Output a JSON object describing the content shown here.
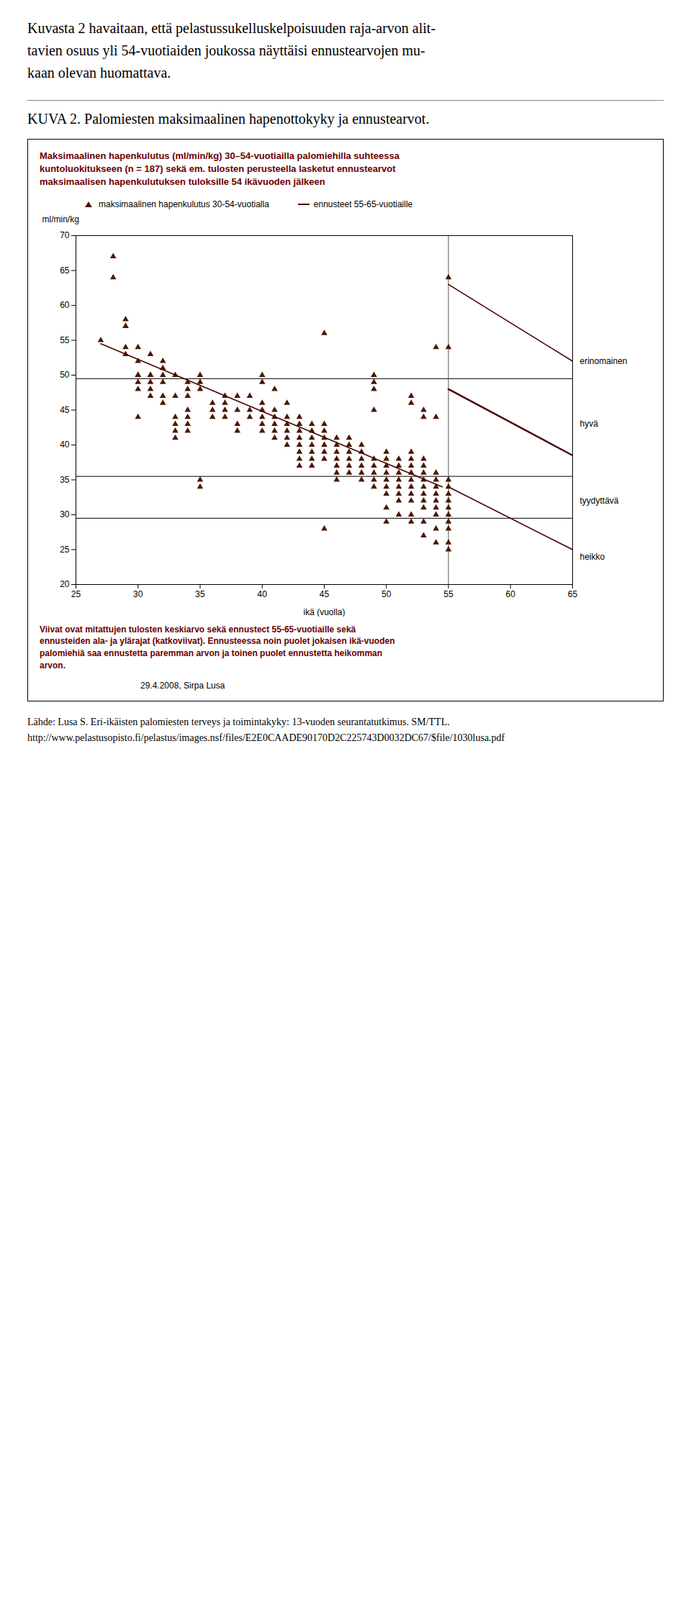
{
  "chart_data": {
    "type": "scatter",
    "intro": "Kuvasta 2  havaitaan, että pelastussukelluskelpoisuuden raja-arvon alit-\ntavien osuus yli 54-vuotiaiden joukossa näyttäisi ennustearvojen mu-\nkaan olevan huomattava.",
    "heading": "KUVA 2.  Palomiesten maksimaalinen hapenottokyky ja ennustearvot.",
    "title": "Maksimaalinen hapenkulutus (ml/min/kg) 30–54-vuotiailla palomiehilla suhteessa\nkuntoluokitukseen (n = 187) sekä em. tulosten perusteella lasketut ennustearvot\nmaksimaalisen hapenkulutuksen tuloksille 54 ikävuoden jälkeen",
    "footnote": "Viivat ovat mitattujen tulosten keskiarvo sekä ennustect 55-65-vuotiaille sekä\nennusteiden ala- ja ylärajat (katkoviivat). Ennusteessa noin puolet jokaisen ikä-vuoden\npalomiehiä saa ennustetta paremman arvon ja toinen puolet ennustetta heikomman\narvon.",
    "date": "29.4.2008,  Sirpa Lusa",
    "source": [
      "Lähde: Lusa S. Eri-ikäisten palomiesten terveys ja toimintakyky: 13-vuoden seurantatutkimus. SM/TTL.",
      "http://www.pelastusopisto.fi/pelastus/images.nsf/files/E2E0CAADE90170D2C225743D0032DC67/$file/1030lusa.pdf"
    ],
    "xlabel": "ikä (vuolla)",
    "ylabel": "ml/min/kg",
    "xlim": [
      25,
      65
    ],
    "ylim": [
      20,
      70
    ],
    "xticks": [
      25,
      30,
      35,
      40,
      45,
      50,
      55,
      60,
      65
    ],
    "yticks": [
      20,
      25,
      30,
      35,
      40,
      45,
      50,
      55,
      60,
      65,
      70
    ],
    "grid": false,
    "hlines": [
      49.5,
      35.5,
      29.5
    ],
    "vline": 55,
    "annotations": [
      {
        "text": "erinomainen",
        "y": 52
      },
      {
        "text": "hyvä",
        "y": 43
      },
      {
        "text": "tyydyttävä",
        "y": 32
      },
      {
        "text": "heikko",
        "y": 24
      }
    ],
    "series": [
      {
        "name": "maksimaalinen hapenkulutus 30-54-vuotialla",
        "type": "scatter",
        "marker": "triangle",
        "color": "#4A1800",
        "x": [
          27,
          28,
          28,
          29,
          29,
          29,
          29,
          29,
          30,
          30,
          30,
          30,
          30,
          30,
          30,
          31,
          31,
          31,
          31,
          31,
          31,
          32,
          32,
          32,
          32,
          32,
          32,
          33,
          33,
          33,
          33,
          33,
          33,
          34,
          34,
          34,
          34,
          34,
          34,
          34,
          35,
          35,
          35,
          35,
          35,
          36,
          36,
          36,
          37,
          37,
          37,
          37,
          38,
          38,
          38,
          38,
          39,
          39,
          39,
          40,
          40,
          40,
          40,
          40,
          40,
          40,
          41,
          41,
          41,
          41,
          41,
          41,
          42,
          42,
          42,
          42,
          42,
          42,
          43,
          43,
          43,
          43,
          43,
          43,
          43,
          43,
          44,
          44,
          44,
          44,
          44,
          44,
          44,
          45,
          45,
          45,
          45,
          45,
          45,
          45,
          45,
          46,
          46,
          46,
          46,
          46,
          46,
          46,
          47,
          47,
          47,
          47,
          47,
          47,
          48,
          48,
          48,
          48,
          48,
          48,
          49,
          49,
          49,
          49,
          49,
          49,
          49,
          49,
          49,
          50,
          50,
          50,
          50,
          50,
          50,
          50,
          50,
          50,
          51,
          51,
          51,
          51,
          51,
          51,
          51,
          51,
          52,
          52,
          52,
          52,
          52,
          52,
          52,
          52,
          52,
          52,
          52,
          52,
          53,
          53,
          53,
          53,
          53,
          53,
          53,
          53,
          53,
          53,
          53,
          53,
          54,
          54,
          54,
          54,
          54,
          54,
          54,
          54,
          54,
          54,
          54,
          55,
          55,
          55,
          55,
          55,
          55,
          55,
          55,
          55,
          55,
          55,
          55
        ],
        "values": [
          55,
          67,
          64,
          57,
          57,
          58,
          54,
          53,
          52,
          50,
          50,
          49,
          48,
          54,
          44,
          50,
          50,
          49,
          48,
          47,
          53,
          51,
          50,
          49,
          52,
          47,
          46,
          50,
          47,
          44,
          43,
          42,
          41,
          49,
          48,
          47,
          45,
          43,
          42,
          44,
          50,
          35,
          34,
          49,
          48,
          46,
          44,
          45,
          46,
          47,
          45,
          44,
          47,
          45,
          43,
          42,
          45,
          47,
          44,
          49,
          50,
          46,
          45,
          44,
          43,
          42,
          48,
          45,
          44,
          43,
          42,
          41,
          46,
          44,
          43,
          42,
          41,
          40,
          44,
          43,
          42,
          41,
          40,
          39,
          38,
          37,
          43,
          42,
          41,
          40,
          39,
          38,
          37,
          56,
          43,
          42,
          41,
          40,
          39,
          38,
          28,
          41,
          40,
          39,
          38,
          37,
          36,
          35,
          41,
          40,
          39,
          38,
          37,
          36,
          40,
          39,
          38,
          37,
          36,
          35,
          50,
          49,
          48,
          45,
          38,
          37,
          36,
          35,
          34,
          39,
          38,
          37,
          36,
          35,
          34,
          33,
          31,
          29,
          38,
          37,
          36,
          35,
          34,
          33,
          32,
          30,
          47,
          46,
          39,
          38,
          37,
          36,
          35,
          34,
          33,
          32,
          30,
          29,
          45,
          44,
          38,
          37,
          36,
          35,
          34,
          33,
          32,
          31,
          29,
          27,
          54,
          44,
          36,
          35,
          34,
          33,
          32,
          31,
          30,
          28,
          26,
          64,
          54,
          35,
          34,
          33,
          32,
          31,
          30,
          29,
          28,
          26,
          25
        ]
      },
      {
        "type": "line",
        "line_style": "solid",
        "color": "#4A0000",
        "x": [
          27,
          54.5
        ],
        "values": [
          54.5,
          34.0
        ]
      },
      {
        "name": "ennusteet 55-65-vuotiaille",
        "type": "line",
        "line_style": "solid",
        "color": "#4A0000",
        "x": [
          55,
          65
        ],
        "values": [
          48.0,
          38.5
        ]
      },
      {
        "type": "line",
        "line_style": "solid",
        "color": "#4A0000",
        "x": [
          55,
          65
        ],
        "values": [
          34.0,
          25.0
        ]
      },
      {
        "type": "line",
        "line_style": "solid",
        "color": "#4A0000",
        "x": [
          55,
          65
        ],
        "values": [
          63.0,
          52.0
        ]
      }
    ]
  }
}
